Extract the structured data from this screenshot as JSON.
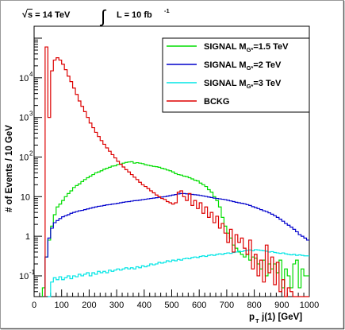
{
  "chart_data": {
    "type": "line",
    "subtype": "step-histogram",
    "header": {
      "sqrt_s_label": "s = 14 TeV",
      "sqrt_symbol": "√",
      "integral_symbol": "∫",
      "lumi_label": "L = 10 fb",
      "lumi_exponent": "-1"
    },
    "xlabel": {
      "main": "p",
      "sub": "T",
      "rest": " j(1) [GeV]"
    },
    "ylabel": "# of Events / 10 GeV",
    "xlim": [
      0,
      1000
    ],
    "ylim": [
      0.03,
      200000
    ],
    "yscale": "log",
    "grid": false,
    "legend_position": "top-right",
    "xticks": [
      0,
      100,
      200,
      300,
      400,
      500,
      600,
      700,
      800,
      900,
      1000
    ],
    "xtick_labels": [
      "0",
      "100",
      "200",
      "300",
      "400",
      "500",
      "600",
      "700",
      "800",
      "900",
      "1000"
    ],
    "yticks": [
      {
        "value": 0.1,
        "base": "10",
        "exp": "-1"
      },
      {
        "value": 1,
        "base": "1",
        "exp": ""
      },
      {
        "value": 10,
        "base": "10",
        "exp": ""
      },
      {
        "value": 100,
        "base": "10",
        "exp": "2"
      },
      {
        "value": 1000,
        "base": "10",
        "exp": "3"
      },
      {
        "value": 10000,
        "base": "10",
        "exp": "4"
      }
    ],
    "series": [
      {
        "legend_pre": "SIGNAL M",
        "legend_sub": "G*",
        "legend_post": "=1.5 TeV",
        "color": "#00dd00",
        "x": [
          40,
          50,
          60,
          70,
          80,
          90,
          100,
          110,
          120,
          130,
          140,
          150,
          160,
          170,
          180,
          190,
          200,
          210,
          220,
          230,
          240,
          250,
          260,
          270,
          280,
          290,
          300,
          310,
          320,
          330,
          340,
          350,
          360,
          370,
          380,
          390,
          400,
          410,
          420,
          430,
          440,
          450,
          460,
          470,
          480,
          490,
          500,
          510,
          520,
          530,
          540,
          550,
          560,
          570,
          580,
          590,
          600,
          610,
          620,
          630,
          640,
          650,
          660,
          670,
          680,
          690,
          700,
          710,
          720,
          730,
          740,
          750,
          760,
          770,
          780,
          790,
          800,
          810,
          820,
          830,
          840,
          850,
          860,
          870,
          880,
          890,
          900,
          910,
          920,
          930,
          940,
          950,
          960,
          970,
          980,
          990,
          1000
        ],
        "y": [
          0.05,
          0.3,
          0.8,
          1.8,
          3.5,
          5.5,
          6.5,
          8,
          10,
          12,
          14,
          17,
          19,
          21,
          24,
          27,
          30,
          33,
          36,
          40,
          42,
          45,
          49,
          52,
          55,
          59,
          60,
          65,
          66,
          70,
          73,
          75,
          76,
          70,
          72,
          70,
          68,
          64,
          62,
          60,
          58,
          57,
          55,
          52,
          50,
          47,
          45,
          42,
          38,
          36,
          35,
          33,
          32,
          30,
          28,
          26,
          25,
          22,
          20,
          18,
          15,
          13,
          10,
          8,
          5.5,
          3,
          1.8,
          1.2,
          0.9,
          0.6,
          0.5,
          0.4,
          0.35,
          0.3,
          0.35,
          0.25,
          0.3,
          0.28,
          0.2,
          0.15,
          0.25,
          0.1,
          0.2,
          0.15,
          0.2,
          0.12,
          0.25,
          0.05,
          0.15,
          0.1,
          0.05,
          0.2,
          0.25,
          0.05,
          0.15,
          0.1,
          0.1
        ]
      },
      {
        "legend_pre": "SIGNAL M",
        "legend_sub": "G*",
        "legend_post": "=2 TeV",
        "color": "#0000cc",
        "x": [
          50,
          60,
          70,
          80,
          90,
          100,
          110,
          120,
          130,
          140,
          150,
          160,
          170,
          180,
          190,
          200,
          210,
          220,
          230,
          240,
          250,
          260,
          270,
          280,
          290,
          300,
          310,
          320,
          330,
          340,
          350,
          360,
          370,
          380,
          390,
          400,
          410,
          420,
          430,
          440,
          450,
          460,
          470,
          480,
          490,
          500,
          510,
          520,
          530,
          540,
          550,
          560,
          570,
          580,
          590,
          600,
          610,
          620,
          630,
          640,
          650,
          660,
          670,
          680,
          690,
          700,
          710,
          720,
          730,
          740,
          750,
          760,
          770,
          780,
          790,
          800,
          810,
          820,
          830,
          840,
          850,
          860,
          870,
          880,
          890,
          900,
          910,
          920,
          930,
          940,
          950,
          960,
          970,
          980,
          990,
          1000
        ],
        "y": [
          0.3,
          0.9,
          1.6,
          2.2,
          2.5,
          2.8,
          3.1,
          3.3,
          3.5,
          3.8,
          4,
          4.2,
          4.4,
          4.5,
          4.7,
          4.9,
          5.1,
          5.3,
          5.5,
          5.7,
          5.8,
          6,
          6.2,
          6.3,
          6.5,
          6.6,
          6.8,
          7,
          7.2,
          7.4,
          7.5,
          7.7,
          7.9,
          8,
          8.2,
          8.4,
          8.6,
          8.8,
          9,
          9.2,
          9.4,
          9.6,
          9.8,
          10,
          10.3,
          10.6,
          11,
          11.3,
          11.7,
          12,
          12,
          11.8,
          11.6,
          11.4,
          11.2,
          11,
          10.7,
          10.4,
          10.1,
          9.8,
          9.5,
          9.2,
          9,
          8.8,
          8.6,
          8.4,
          8.1,
          7.8,
          7.5,
          7.2,
          7,
          6.8,
          6.6,
          6.3,
          6,
          5.6,
          5.3,
          5,
          4.7,
          4.4,
          4.2,
          3.9,
          3.6,
          3.3,
          3,
          2.7,
          2.4,
          2.1,
          1.9,
          1.7,
          1.5,
          1.3,
          1.1,
          1,
          0.9,
          0.8
        ]
      },
      {
        "legend_pre": "SIGNAL M",
        "legend_sub": "G*",
        "legend_post": "=3 TeV",
        "color": "#00e5e5",
        "x": [
          60,
          70,
          80,
          90,
          100,
          110,
          120,
          130,
          140,
          150,
          160,
          170,
          180,
          190,
          200,
          210,
          220,
          230,
          240,
          250,
          260,
          270,
          280,
          290,
          300,
          310,
          320,
          330,
          340,
          350,
          360,
          370,
          380,
          390,
          400,
          410,
          420,
          430,
          440,
          450,
          460,
          470,
          480,
          490,
          500,
          510,
          520,
          530,
          540,
          550,
          560,
          570,
          580,
          590,
          600,
          610,
          620,
          630,
          640,
          650,
          660,
          670,
          680,
          690,
          700,
          710,
          720,
          730,
          740,
          750,
          760,
          770,
          780,
          790,
          800,
          810,
          820,
          830,
          840,
          850,
          860,
          870,
          880,
          890,
          900,
          910,
          920,
          930,
          940,
          950,
          960,
          970,
          980,
          990,
          1000
        ],
        "y": [
          0.03,
          0.07,
          0.09,
          0.08,
          0.095,
          0.08,
          0.09,
          0.1,
          0.085,
          0.1,
          0.095,
          0.11,
          0.1,
          0.11,
          0.12,
          0.1,
          0.12,
          0.11,
          0.13,
          0.12,
          0.13,
          0.12,
          0.14,
          0.13,
          0.14,
          0.15,
          0.14,
          0.15,
          0.16,
          0.15,
          0.16,
          0.15,
          0.17,
          0.16,
          0.18,
          0.17,
          0.18,
          0.2,
          0.19,
          0.2,
          0.22,
          0.21,
          0.22,
          0.24,
          0.23,
          0.25,
          0.24,
          0.26,
          0.25,
          0.27,
          0.28,
          0.27,
          0.29,
          0.3,
          0.29,
          0.31,
          0.32,
          0.31,
          0.33,
          0.34,
          0.33,
          0.35,
          0.36,
          0.35,
          0.37,
          0.38,
          0.37,
          0.39,
          0.4,
          0.42,
          0.41,
          0.43,
          0.44,
          0.45,
          0.43,
          0.46,
          0.45,
          0.44,
          0.43,
          0.42,
          0.4,
          0.41,
          0.39,
          0.38,
          0.37,
          0.38,
          0.36,
          0.35,
          0.34,
          0.35,
          0.33,
          0.34,
          0.33,
          0.32,
          0.32
        ]
      },
      {
        "legend_pre": "BCKG",
        "legend_sub": "",
        "legend_post": "",
        "color": "#dd0000",
        "x": [
          50,
          60,
          70,
          80,
          90,
          100,
          110,
          120,
          130,
          140,
          150,
          160,
          170,
          180,
          190,
          200,
          210,
          220,
          230,
          240,
          250,
          260,
          270,
          280,
          290,
          300,
          310,
          320,
          330,
          340,
          350,
          360,
          370,
          380,
          390,
          400,
          410,
          420,
          430,
          440,
          450,
          460,
          470,
          480,
          490,
          500,
          510,
          520,
          530,
          540,
          550,
          560,
          570,
          580,
          590,
          600,
          610,
          620,
          630,
          640,
          650,
          660,
          670,
          680,
          690,
          700,
          710,
          720,
          730,
          740,
          750,
          760,
          770,
          780,
          790,
          800,
          810,
          820,
          830,
          840,
          850,
          860,
          870,
          880,
          890,
          900,
          910,
          920,
          930,
          940,
          950,
          960,
          970,
          980,
          990,
          1000
        ],
        "y": [
          60000,
          1000,
          15000,
          28000,
          32000,
          28000,
          22000,
          16000,
          11000,
          8000,
          5500,
          3800,
          2600,
          1900,
          1400,
          1000,
          720,
          550,
          420,
          330,
          260,
          210,
          170,
          140,
          115,
          95,
          78,
          66,
          56,
          48,
          42,
          36,
          31,
          27,
          23,
          20,
          18,
          16,
          14,
          12.5,
          11,
          10,
          9,
          8.5,
          7.5,
          7,
          6.5,
          7,
          13,
          14,
          10,
          8,
          12,
          6,
          8,
          5,
          7,
          3.8,
          5.5,
          3,
          4,
          2.2,
          3.2,
          1.6,
          2.1,
          1.2,
          0.7,
          1.5,
          0.4,
          1.1,
          0.7,
          0.9,
          0.5,
          0.35,
          0.8,
          0.15,
          0.35,
          0.1,
          0.25,
          0.07,
          0.6,
          0.12,
          0.3,
          0.06,
          0.22,
          0.04,
          0.08,
          0.03,
          0.05,
          0.04,
          0.03,
          0.03,
          0.03,
          0.03,
          0.03,
          0.03
        ]
      }
    ]
  }
}
